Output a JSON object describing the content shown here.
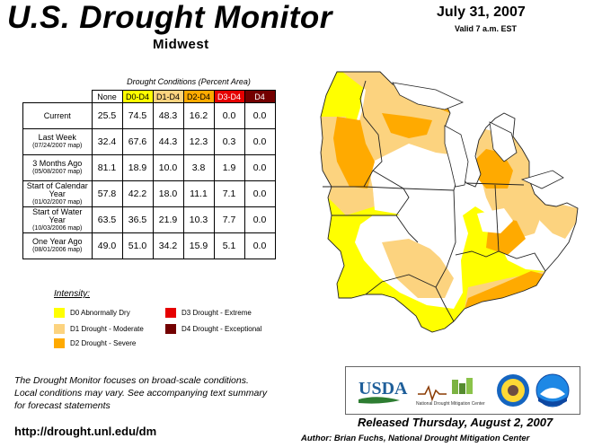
{
  "header": {
    "title": "U.S. Drought Monitor",
    "region": "Midwest",
    "date": "July 31, 2007",
    "valid": "Valid 7 a.m. EST"
  },
  "table": {
    "caption": "Drought Conditions (Percent Area)",
    "columns": [
      "None",
      "D0-D4",
      "D1-D4",
      "D2-D4",
      "D3-D4",
      "D4"
    ],
    "rows": [
      {
        "label": "Current",
        "sub": "",
        "values": [
          "25.5",
          "74.5",
          "48.3",
          "16.2",
          "0.0",
          "0.0"
        ]
      },
      {
        "label": "Last Week",
        "sub": "(07/24/2007 map)",
        "values": [
          "32.4",
          "67.6",
          "44.3",
          "12.3",
          "0.3",
          "0.0"
        ]
      },
      {
        "label": "3 Months Ago",
        "sub": "(05/08/2007 map)",
        "values": [
          "81.1",
          "18.9",
          "10.0",
          "3.8",
          "1.9",
          "0.0"
        ]
      },
      {
        "label": "Start of Calendar Year",
        "sub": "(01/02/2007 map)",
        "values": [
          "57.8",
          "42.2",
          "18.0",
          "11.1",
          "7.1",
          "0.0"
        ]
      },
      {
        "label": "Start of Water Year",
        "sub": "(10/03/2006 map)",
        "values": [
          "63.5",
          "36.5",
          "21.9",
          "10.3",
          "7.7",
          "0.0"
        ]
      },
      {
        "label": "One Year Ago",
        "sub": "(08/01/2006 map)",
        "values": [
          "49.0",
          "51.0",
          "34.2",
          "15.9",
          "5.1",
          "0.0"
        ]
      }
    ]
  },
  "legend": {
    "title": "Intensity:",
    "items": [
      {
        "label": "D0 Abnormally Dry",
        "color": "#ffff00"
      },
      {
        "label": "D1 Drought - Moderate",
        "color": "#fcd37f"
      },
      {
        "label": "D2 Drought - Severe",
        "color": "#ffaa00"
      },
      {
        "label": "D3 Drought - Extreme",
        "color": "#e60000"
      },
      {
        "label": "D4 Drought - Exceptional",
        "color": "#730000"
      }
    ]
  },
  "footer": {
    "note_line1": "The Drought Monitor focuses on broad-scale conditions.",
    "note_line2": "Local conditions may vary. See accompanying text summary",
    "note_line3": "for forecast statements",
    "url": "http://drought.unl.edu/dm",
    "released": "Released Thursday, August 2, 2007",
    "author": "Author: Brian Fuchs, National Drought Mitigation Center"
  },
  "logos": {
    "usda": "USDA",
    "ndmc": "National Drought Mitigation Center",
    "icons": [
      "usda-logo",
      "ndmc-logo",
      "commerce-seal",
      "noaa-logo"
    ]
  }
}
